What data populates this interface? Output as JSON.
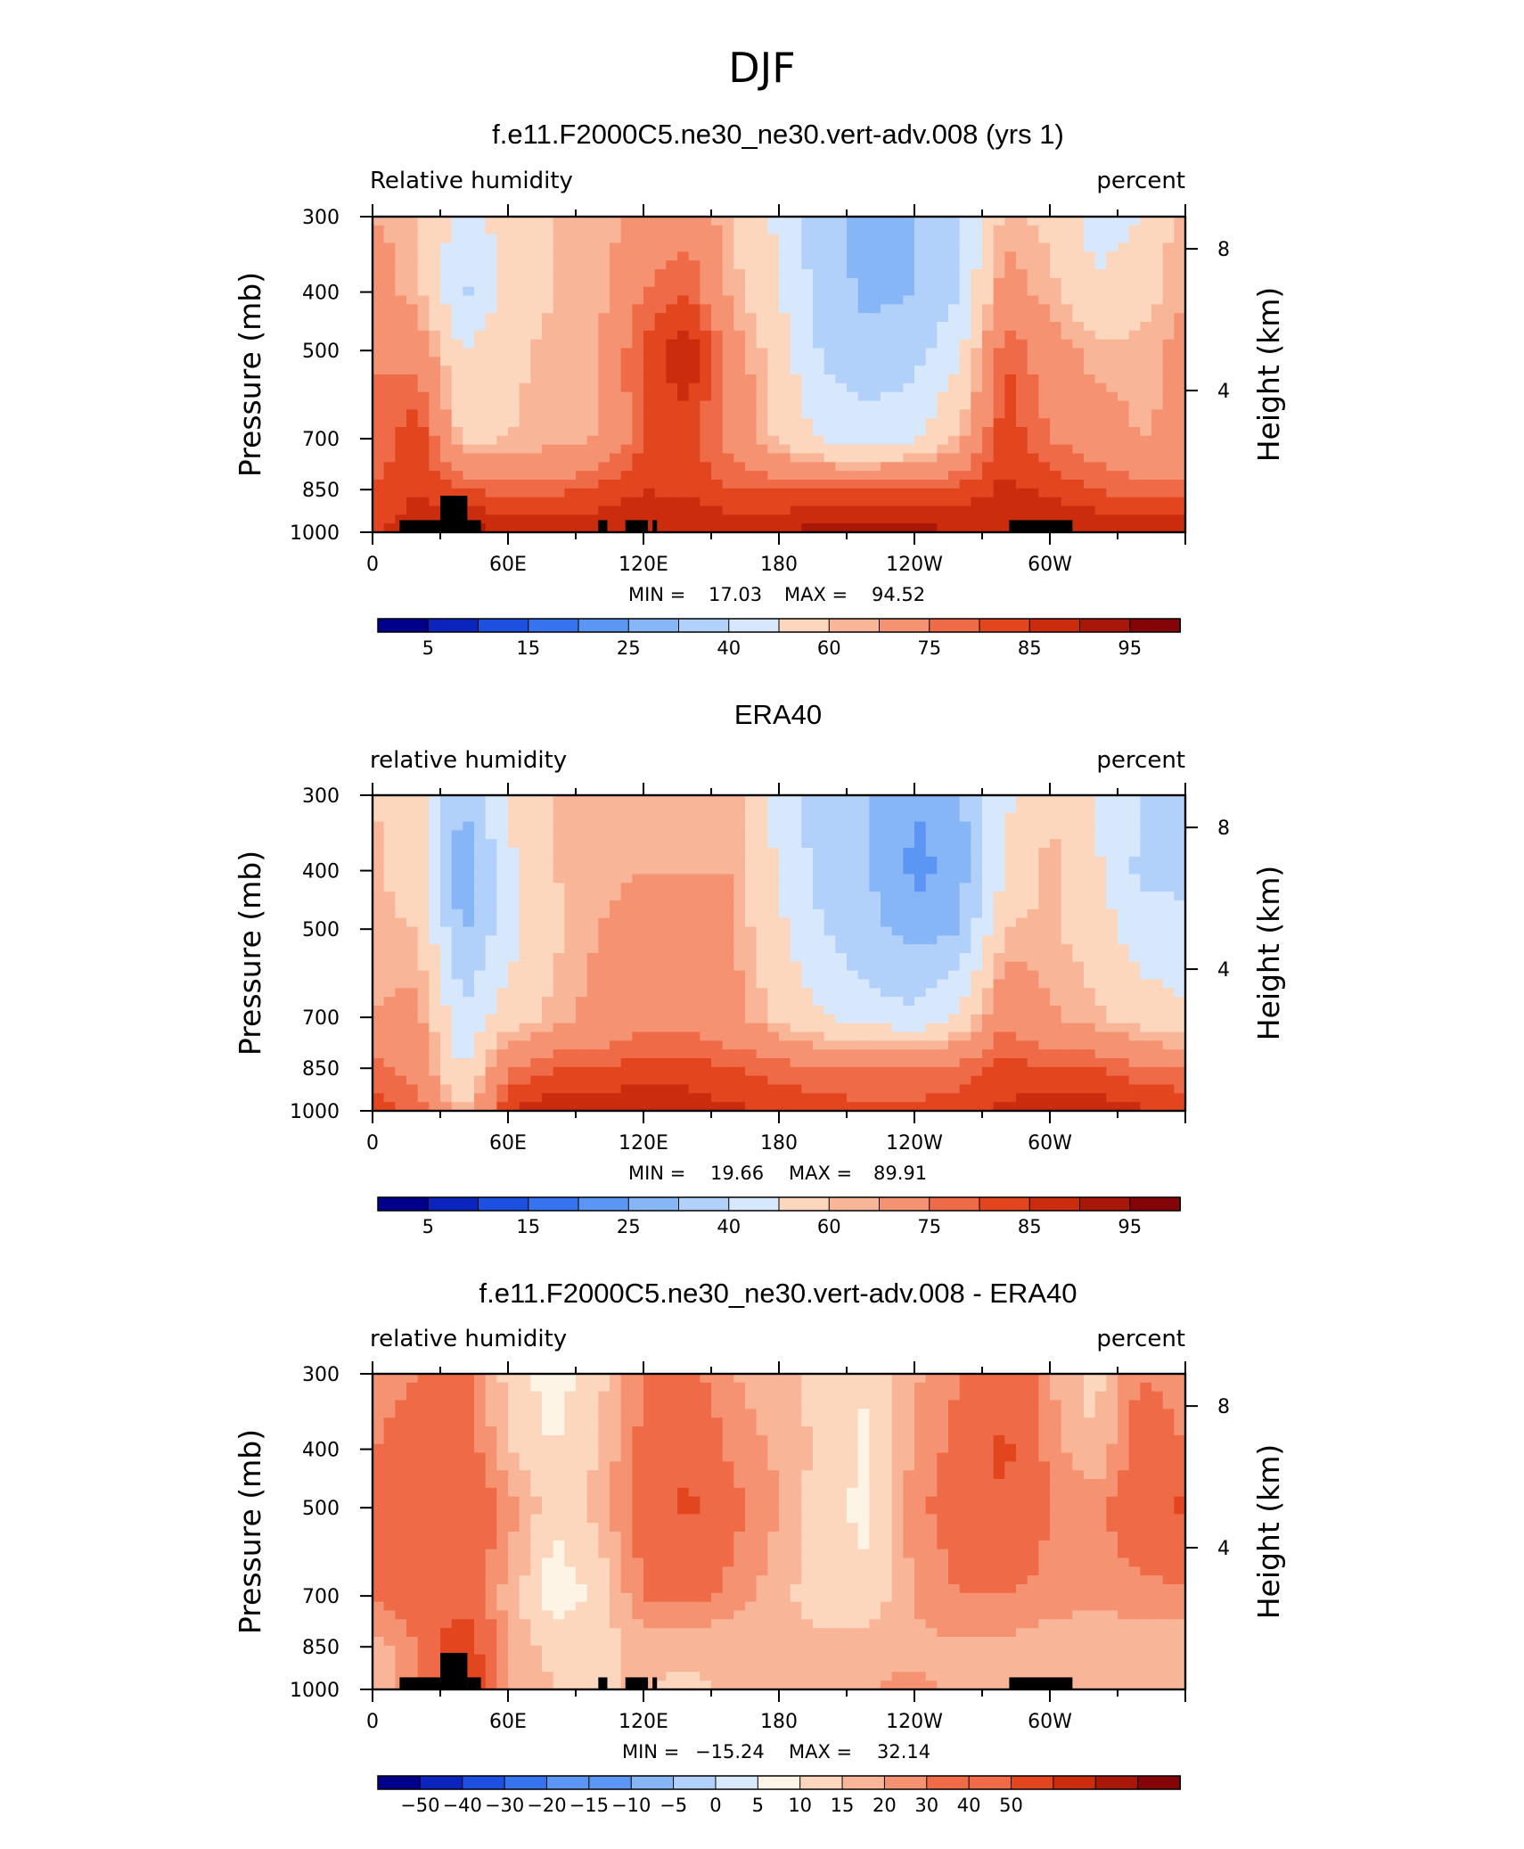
{
  "figure": {
    "title": "DJF"
  },
  "colors": [
    "#00008c",
    "#0b24bd",
    "#1d4fe0",
    "#3674ef",
    "#5b96f4",
    "#87b6f7",
    "#b2d1fa",
    "#d7e8fc",
    "#fdf4e6",
    "#fcd6bd",
    "#f9b597",
    "#f59271",
    "#ef6b47",
    "#e3461f",
    "#cb2c0e",
    "#a81707",
    "#840407"
  ],
  "chart_data": [
    {
      "type": "heatmap",
      "title": "f.e11.F2000C5.ne30_ne30.vert-adv.008 (yrs 1)",
      "left_label": "Relative humidity",
      "right_label": "percent",
      "ylabel_left": "Pressure (mb)",
      "ylabel_right": "Height (km)",
      "x_ticks": [
        "0",
        "60E",
        "120E",
        "180",
        "120W",
        "60W"
      ],
      "y_ticks": [
        "300",
        "400",
        "500",
        "700",
        "850",
        "1000"
      ],
      "right_ticks": [
        "8",
        "4"
      ],
      "stats": {
        "min_label": "MIN =",
        "min": "17.03",
        "max_label": "MAX =",
        "max": "94.52"
      },
      "levels": [
        5,
        10,
        15,
        20,
        25,
        30,
        40,
        50,
        60,
        65,
        75,
        80,
        85,
        90,
        95
      ],
      "level_labels": [
        "5",
        "15",
        "25",
        "40",
        "60",
        "75",
        "85",
        "95"
      ],
      "topography": true,
      "field": {
        "lon": [
          0,
          20,
          40,
          60,
          80,
          100,
          120,
          140,
          160,
          180,
          200,
          220,
          240,
          260,
          280,
          300,
          320,
          340,
          360
        ],
        "plev": [
          300,
          400,
          500,
          700,
          850,
          1000
        ],
        "values": [
          [
            65,
            62,
            45,
            55,
            60,
            60,
            70,
            72,
            60,
            48,
            33,
            25,
            30,
            38,
            62,
            58,
            45,
            50,
            65
          ],
          [
            70,
            62,
            38,
            52,
            60,
            62,
            75,
            80,
            62,
            50,
            35,
            28,
            30,
            40,
            70,
            62,
            52,
            55,
            65
          ],
          [
            75,
            72,
            50,
            58,
            62,
            65,
            82,
            90,
            70,
            55,
            38,
            32,
            36,
            48,
            80,
            70,
            62,
            62,
            68
          ],
          [
            75,
            85,
            58,
            60,
            62,
            65,
            80,
            82,
            72,
            58,
            48,
            45,
            48,
            62,
            84,
            75,
            70,
            65,
            66
          ],
          [
            80,
            85,
            80,
            78,
            78,
            82,
            85,
            84,
            80,
            80,
            80,
            80,
            82,
            82,
            86,
            84,
            80,
            78,
            76
          ],
          [
            85,
            88,
            92,
            90,
            88,
            88,
            88,
            90,
            88,
            90,
            92,
            92,
            92,
            90,
            88,
            90,
            90,
            88,
            90
          ]
        ]
      }
    },
    {
      "type": "heatmap",
      "title": "ERA40",
      "left_label": "relative humidity",
      "right_label": "percent",
      "ylabel_left": "Pressure (mb)",
      "ylabel_right": "Height (km)",
      "x_ticks": [
        "0",
        "60E",
        "120E",
        "180",
        "120W",
        "60W"
      ],
      "y_ticks": [
        "300",
        "400",
        "500",
        "700",
        "850",
        "1000"
      ],
      "right_ticks": [
        "8",
        "4"
      ],
      "stats": {
        "min_label": "MIN =",
        "min": "19.66",
        "max_label": "MAX =",
        "max": "89.91"
      },
      "levels": [
        5,
        10,
        15,
        20,
        25,
        30,
        40,
        50,
        60,
        65,
        75,
        80,
        85,
        90,
        95
      ],
      "level_labels": [
        "5",
        "15",
        "25",
        "40",
        "60",
        "75",
        "85",
        "95"
      ],
      "topography": false,
      "field": {
        "lon": [
          0,
          20,
          40,
          60,
          80,
          100,
          120,
          140,
          160,
          180,
          200,
          220,
          240,
          260,
          280,
          300,
          320,
          340,
          360
        ],
        "plev": [
          300,
          400,
          500,
          700,
          850,
          1000
        ],
        "values": [
          [
            60,
            55,
            30,
            50,
            60,
            60,
            62,
            62,
            62,
            48,
            33,
            30,
            25,
            28,
            48,
            60,
            50,
            40,
            38
          ],
          [
            62,
            55,
            22,
            48,
            60,
            62,
            65,
            65,
            65,
            48,
            36,
            30,
            24,
            26,
            50,
            62,
            52,
            38,
            38
          ],
          [
            62,
            60,
            28,
            45,
            58,
            65,
            70,
            68,
            65,
            52,
            40,
            32,
            26,
            30,
            60,
            62,
            55,
            45,
            42
          ],
          [
            65,
            68,
            42,
            55,
            62,
            68,
            72,
            72,
            68,
            58,
            50,
            45,
            42,
            52,
            74,
            66,
            62,
            55,
            52
          ],
          [
            78,
            72,
            48,
            75,
            80,
            80,
            82,
            82,
            80,
            78,
            76,
            75,
            75,
            78,
            82,
            80,
            80,
            76,
            74
          ],
          [
            82,
            78,
            60,
            85,
            88,
            88,
            90,
            88,
            86,
            84,
            82,
            82,
            82,
            82,
            86,
            88,
            88,
            86,
            86
          ]
        ]
      }
    },
    {
      "type": "heatmap",
      "title": "f.e11.F2000C5.ne30_ne30.vert-adv.008 - ERA40",
      "left_label": "relative humidity",
      "right_label": "percent",
      "ylabel_left": "Pressure (mb)",
      "ylabel_right": "Height (km)",
      "x_ticks": [
        "0",
        "60E",
        "120E",
        "180",
        "120W",
        "60W"
      ],
      "y_ticks": [
        "300",
        "400",
        "500",
        "700",
        "850",
        "1000"
      ],
      "right_ticks": [
        "8",
        "4"
      ],
      "stats": {
        "min_label": "MIN =",
        "min": "−15.24",
        "max_label": "MAX =",
        "max": "32.14"
      },
      "levels": [
        -50,
        -45,
        -40,
        -35,
        -30,
        -25,
        -20,
        -15,
        -10,
        -5,
        0,
        5,
        10,
        15,
        20,
        30,
        40,
        50
      ],
      "level_labels": [
        "−50",
        "−40",
        "−30",
        "−20",
        "−15",
        "−10",
        "−5",
        "0",
        "5",
        "10",
        "15",
        "20",
        "30",
        "40",
        "50"
      ],
      "topography": true,
      "field": {
        "lon": [
          0,
          20,
          40,
          60,
          80,
          100,
          120,
          140,
          160,
          180,
          200,
          220,
          240,
          260,
          280,
          300,
          320,
          340,
          360
        ],
        "plev": [
          300,
          400,
          500,
          700,
          850,
          1000
        ],
        "values": [
          [
            8,
            10,
            12,
            -2,
            -8,
            -2,
            10,
            12,
            5,
            2,
            -2,
            -5,
            4,
            10,
            18,
            5,
            -2,
            10,
            8
          ],
          [
            10,
            12,
            15,
            0,
            -5,
            0,
            12,
            18,
            8,
            4,
            -2,
            -6,
            6,
            12,
            22,
            8,
            0,
            14,
            10
          ],
          [
            15,
            12,
            20,
            8,
            -4,
            2,
            14,
            22,
            12,
            5,
            -4,
            -6,
            8,
            14,
            20,
            10,
            8,
            16,
            22
          ],
          [
            10,
            15,
            14,
            3,
            -8,
            -4,
            10,
            12,
            8,
            2,
            -4,
            -4,
            5,
            10,
            10,
            8,
            6,
            8,
            8
          ],
          [
            2,
            10,
            30,
            3,
            -2,
            -3,
            3,
            2,
            0,
            1,
            2,
            3,
            4,
            4,
            4,
            2,
            0,
            2,
            2
          ],
          [
            3,
            8,
            30,
            5,
            0,
            0,
            0,
            -2,
            2,
            3,
            4,
            5,
            6,
            4,
            2,
            2,
            3,
            2,
            4
          ]
        ]
      }
    }
  ]
}
